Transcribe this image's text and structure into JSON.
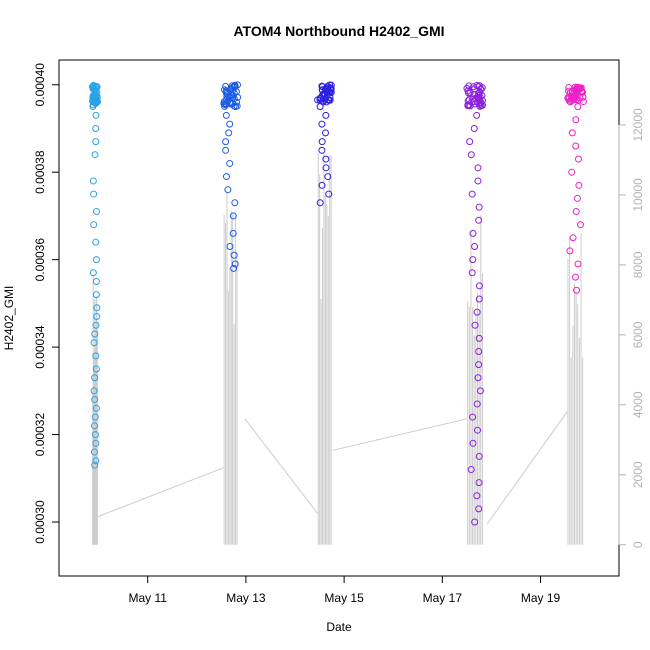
{
  "chart_data": {
    "type": "scatter",
    "title": "ATOM4 Northbound H2402_GMI",
    "xlabel": "Date",
    "ylabel": "H2402_GMI",
    "x_axis": {
      "type": "date",
      "range": [
        "2015-05-09 11:00",
        "2015-05-20 08:00"
      ],
      "ticks": [
        {
          "x": "2015-05-11 00:00",
          "label": "May 11"
        },
        {
          "x": "2015-05-13 00:00",
          "label": "May 13"
        },
        {
          "x": "2015-05-15 00:00",
          "label": "May 15"
        },
        {
          "x": "2015-05-17 00:00",
          "label": "May 17"
        },
        {
          "x": "2015-05-19 00:00",
          "label": "May 19"
        }
      ]
    },
    "y_axis": {
      "range": [
        0.000292,
        0.000402
      ],
      "ticks": [
        {
          "v": 0.0003,
          "label": "0.00030"
        },
        {
          "v": 0.00032,
          "label": "0.00032"
        },
        {
          "v": 0.00034,
          "label": "0.00034"
        },
        {
          "v": 0.00036,
          "label": "0.00036"
        },
        {
          "v": 0.00038,
          "label": "0.00038"
        },
        {
          "v": 0.0004,
          "label": "0.00040"
        }
      ]
    },
    "y2_axis": {
      "range": [
        -350,
        13400
      ],
      "color": "#b3b3b3",
      "ticks": [
        {
          "v": 0,
          "label": "0"
        },
        {
          "v": 2000,
          "label": "2000"
        },
        {
          "v": 4000,
          "label": "4000"
        },
        {
          "v": 6000,
          "label": "6000"
        },
        {
          "v": 8000,
          "label": "8000"
        },
        {
          "v": 10000,
          "label": "10000"
        },
        {
          "v": 12000,
          "label": "12000"
        }
      ]
    },
    "grid": false,
    "legend": "none",
    "clusters": [
      {
        "date": "2015-05-09",
        "start": "2015-05-09 21:00",
        "end": "2015-05-09 23:30",
        "color": "#29a3e6",
        "ymin": 0.000313,
        "ymax": 0.0004,
        "dense_top": 0.000395,
        "points": [
          0.000399,
          0.000398,
          0.000396,
          0.000393,
          0.00039,
          0.000387,
          0.000384,
          0.000378,
          0.000375,
          0.000371,
          0.000368,
          0.000364,
          0.00036,
          0.000357,
          0.000355,
          0.000352,
          0.000349,
          0.000347,
          0.000345,
          0.000343,
          0.000341,
          0.000338,
          0.000335,
          0.000333,
          0.00033,
          0.000328,
          0.000326,
          0.000324,
          0.000322,
          0.00032,
          0.000318,
          0.000316,
          0.000314,
          0.000313
        ]
      },
      {
        "date": "2015-05-12",
        "start": "2015-05-12 13:00",
        "end": "2015-05-12 20:00",
        "color": "#1f5ce6",
        "ymin": 0.000358,
        "ymax": 0.0004,
        "dense_top": 0.000395,
        "points": [
          0.000399,
          0.000397,
          0.000395,
          0.000393,
          0.000391,
          0.000389,
          0.000387,
          0.000385,
          0.000382,
          0.000379,
          0.000376,
          0.000373,
          0.00037,
          0.000366,
          0.000363,
          0.000361,
          0.000359,
          0.000358
        ]
      },
      {
        "date": "2015-05-14",
        "start": "2015-05-14 11:00",
        "end": "2015-05-14 18:00",
        "color": "#2a1fe0",
        "ymin": 0.000373,
        "ymax": 0.0004,
        "dense_top": 0.000396,
        "points": [
          0.000399,
          0.000397,
          0.000395,
          0.000393,
          0.000391,
          0.000389,
          0.000387,
          0.000385,
          0.000383,
          0.000381,
          0.000379,
          0.000377,
          0.000375,
          0.000373
        ]
      },
      {
        "date": "2015-05-17",
        "start": "2015-05-17 12:00",
        "end": "2015-05-17 20:00",
        "color": "#8a1fe0",
        "ymin": 0.0003,
        "ymax": 0.0004,
        "dense_top": 0.000395,
        "points": [
          0.000399,
          0.000396,
          0.000393,
          0.00039,
          0.000387,
          0.000384,
          0.000381,
          0.000378,
          0.000375,
          0.000372,
          0.000369,
          0.000366,
          0.000363,
          0.00036,
          0.000357,
          0.000354,
          0.000351,
          0.000348,
          0.000345,
          0.000342,
          0.000339,
          0.000336,
          0.000333,
          0.00033,
          0.000327,
          0.000324,
          0.000321,
          0.000318,
          0.000315,
          0.000312,
          0.000309,
          0.000306,
          0.000303,
          0.0003
        ]
      },
      {
        "date": "2015-05-19",
        "start": "2015-05-19 13:00",
        "end": "2015-05-19 21:00",
        "color": "#f01fc8",
        "ymin": 0.000353,
        "ymax": 0.0004,
        "dense_top": 0.000396,
        "points": [
          0.000399,
          0.000397,
          0.000395,
          0.000392,
          0.000389,
          0.000386,
          0.000383,
          0.00038,
          0.000377,
          0.000374,
          0.000371,
          0.000368,
          0.000365,
          0.000362,
          0.000359,
          0.000356,
          0.000353
        ]
      }
    ],
    "count_series": {
      "color": "#cccccc",
      "segments": [
        {
          "from": [
            "2015-05-09 23:30",
            800
          ],
          "to": [
            "2015-05-12 13:00",
            2200
          ]
        },
        {
          "from": [
            "2015-05-12 23:30",
            3600
          ],
          "to": [
            "2015-05-14 11:00",
            900
          ]
        },
        {
          "from": [
            "2015-05-14 18:30",
            2700
          ],
          "to": [
            "2015-05-17 12:00",
            3600
          ]
        },
        {
          "from": [
            "2015-05-17 22:00",
            600
          ],
          "to": [
            "2015-05-19 13:00",
            3800
          ]
        }
      ],
      "spikes": [
        {
          "cluster": 0,
          "low": 0,
          "high": 8000
        },
        {
          "cluster": 1,
          "low": 0,
          "high": 11000
        },
        {
          "cluster": 2,
          "low": 0,
          "high": 11600
        },
        {
          "cluster": 3,
          "low": 0,
          "high": 9700
        },
        {
          "cluster": 4,
          "low": 0,
          "high": 9300
        }
      ]
    }
  }
}
